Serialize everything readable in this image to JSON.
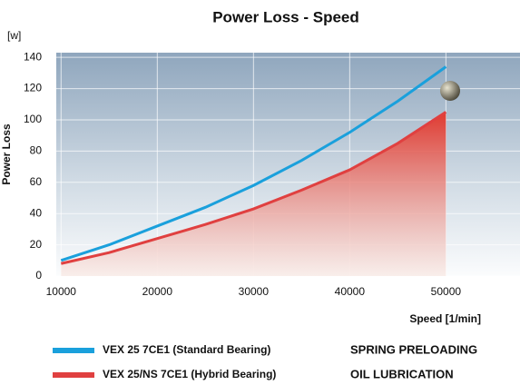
{
  "chart_data": {
    "type": "line",
    "title": "Power Loss - Speed",
    "y_unit": "[w]",
    "ylabel": "Power Loss",
    "xlabel": "Speed [1/min]",
    "x": [
      10000,
      15000,
      20000,
      25000,
      30000,
      35000,
      40000,
      45000,
      50000
    ],
    "series": [
      {
        "name": "VEX 25 7CE1 (Standard Bearing)",
        "color": "#1aa0dc",
        "values": [
          10,
          20,
          32,
          44,
          58,
          74,
          92,
          112,
          134
        ]
      },
      {
        "name": "VEX 25/NS 7CE1 (Hybrid Bearing)",
        "color": "#e04040",
        "values": [
          8,
          15,
          24,
          33,
          43,
          55,
          68,
          85,
          105
        ],
        "fill": true
      }
    ],
    "annotations": [
      "SPRING PRELOADING",
      "OIL LUBRICATION"
    ],
    "xlim": [
      9500,
      57700
    ],
    "ylim": [
      0,
      143
    ],
    "xticks": [
      10000,
      20000,
      30000,
      40000,
      50000
    ],
    "yticks": [
      0,
      20,
      40,
      60,
      80,
      100,
      120,
      140
    ],
    "grid": true
  }
}
